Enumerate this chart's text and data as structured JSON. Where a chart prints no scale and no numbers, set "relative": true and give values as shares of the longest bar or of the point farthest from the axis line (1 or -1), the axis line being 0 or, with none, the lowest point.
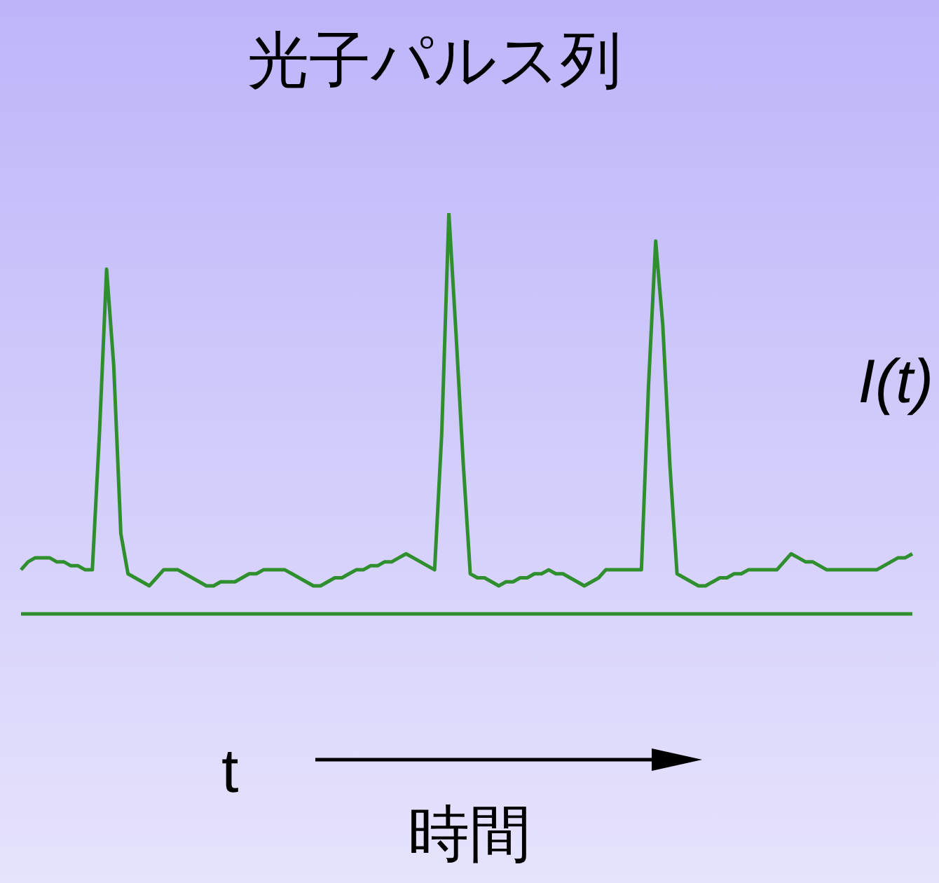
{
  "chart_data": {
    "type": "line",
    "title": "光子パルス列",
    "ylabel": "I(t)",
    "xlabel": "時間",
    "annotations": [
      "t"
    ],
    "relative": true,
    "marker": "none",
    "categories": [
      null,
      null,
      null,
      null,
      null,
      null,
      null,
      null,
      null,
      null,
      null,
      null,
      null,
      null,
      null,
      null,
      null,
      null,
      null,
      null,
      null,
      null,
      null,
      null,
      null,
      null,
      null,
      null,
      null,
      null,
      null,
      null,
      null,
      null,
      null,
      null,
      null,
      null,
      null,
      null,
      null,
      null,
      null,
      null,
      null,
      null,
      null,
      null,
      null,
      null,
      null,
      null,
      null,
      null,
      null,
      null,
      null,
      null,
      null,
      null,
      null,
      null,
      null,
      null,
      null,
      null,
      null,
      null,
      null,
      null,
      null,
      null,
      null,
      null,
      null,
      null,
      null,
      null,
      null,
      null,
      null,
      null,
      null,
      null,
      null,
      null,
      null,
      null,
      null,
      null,
      null,
      null,
      null,
      null,
      null,
      null,
      null,
      null,
      null,
      null,
      null,
      null,
      null,
      null,
      null,
      null,
      null,
      null,
      null,
      null,
      null,
      null,
      null,
      null,
      null,
      null,
      null,
      null,
      null,
      null,
      null,
      null,
      null,
      null,
      null,
      null
    ],
    "series": [
      {
        "color": "#2f8f2f",
        "values": [
          0.11,
          0.13,
          0.14,
          0.14,
          0.14,
          0.13,
          0.13,
          0.12,
          0.12,
          0.11,
          0.11,
          0.45,
          0.86,
          0.62,
          0.2,
          0.1,
          0.09,
          0.08,
          0.07,
          0.09,
          0.11,
          0.11,
          0.11,
          0.1,
          0.09,
          0.08,
          0.07,
          0.07,
          0.08,
          0.08,
          0.08,
          0.09,
          0.1,
          0.1,
          0.11,
          0.11,
          0.11,
          0.11,
          0.1,
          0.09,
          0.08,
          0.07,
          0.07,
          0.08,
          0.09,
          0.09,
          0.1,
          0.11,
          0.11,
          0.12,
          0.12,
          0.13,
          0.13,
          0.14,
          0.15,
          0.14,
          0.13,
          0.12,
          0.11,
          0.45,
          1,
          0.7,
          0.38,
          0.1,
          0.09,
          0.09,
          0.08,
          0.07,
          0.08,
          0.08,
          0.09,
          0.09,
          0.1,
          0.1,
          0.11,
          0.1,
          0.1,
          0.09,
          0.08,
          0.07,
          0.08,
          0.09,
          0.11,
          0.11,
          0.11,
          0.11,
          0.11,
          0.11,
          0.57,
          0.93,
          0.72,
          0.37,
          0.1,
          0.09,
          0.08,
          0.07,
          0.07,
          0.08,
          0.09,
          0.09,
          0.1,
          0.1,
          0.11,
          0.11,
          0.11,
          0.11,
          0.11,
          0.13,
          0.15,
          0.14,
          0.13,
          0.13,
          0.12,
          0.11,
          0.11,
          0.11,
          0.11,
          0.11,
          0.11,
          0.11,
          0.11,
          0.12,
          0.13,
          0.14,
          0.14,
          0.15
        ]
      }
    ]
  }
}
